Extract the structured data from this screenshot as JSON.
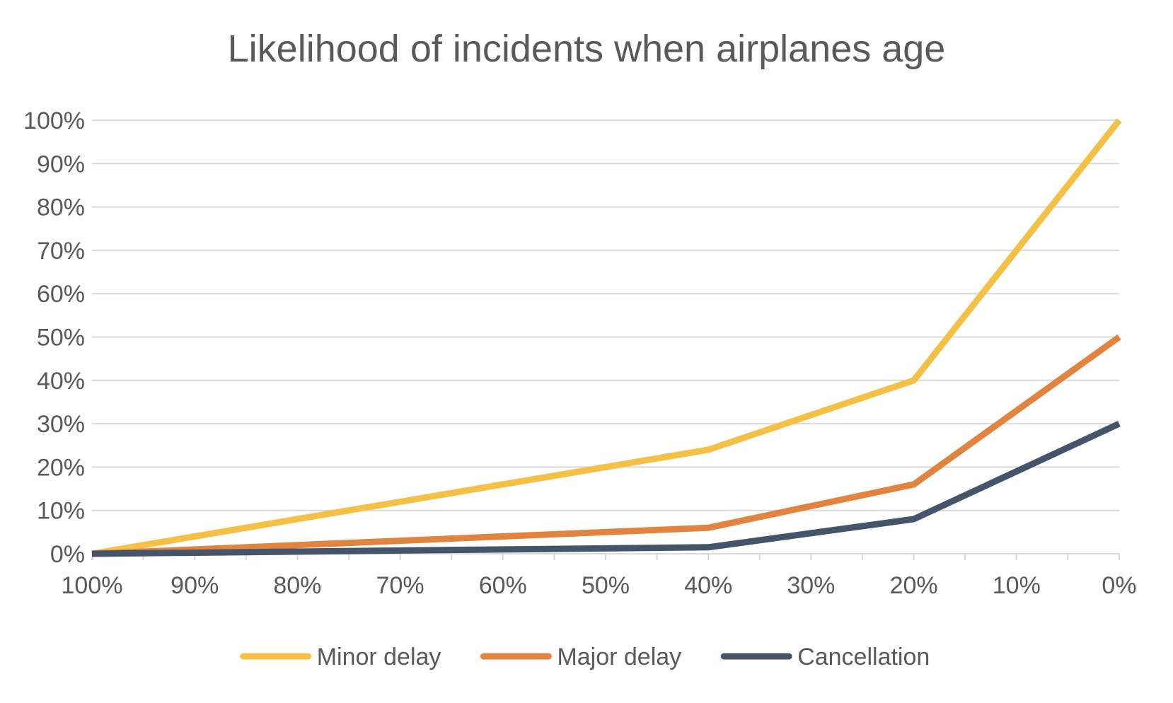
{
  "chart_data": {
    "type": "line",
    "title": "Likelihood of incidents when airplanes age",
    "xlabel": "",
    "ylabel": "",
    "categories": [
      "100%",
      "90%",
      "80%",
      "70%",
      "60%",
      "50%",
      "40%",
      "30%",
      "20%",
      "10%",
      "0%"
    ],
    "x_minor_ticks": true,
    "ylim": [
      0,
      100
    ],
    "y_ticks": [
      "0%",
      "10%",
      "20%",
      "30%",
      "40%",
      "50%",
      "60%",
      "70%",
      "80%",
      "90%",
      "100%"
    ],
    "y_tick_values": [
      0,
      10,
      20,
      30,
      40,
      50,
      60,
      70,
      80,
      90,
      100
    ],
    "grid": "horizontal",
    "legend_position": "bottom",
    "series": [
      {
        "name": "Minor delay",
        "color": "#F4C045",
        "x": [
          "100%",
          "40%",
          "20%",
          "0%"
        ],
        "values": [
          0,
          24,
          40,
          100
        ]
      },
      {
        "name": "Major delay",
        "color": "#E0843F",
        "x": [
          "100%",
          "40%",
          "20%",
          "0%"
        ],
        "values": [
          0,
          6,
          16,
          50
        ]
      },
      {
        "name": "Cancellation",
        "color": "#44546A",
        "x": [
          "100%",
          "40%",
          "20%",
          "0%"
        ],
        "values": [
          0,
          1.5,
          8,
          30
        ]
      }
    ]
  }
}
